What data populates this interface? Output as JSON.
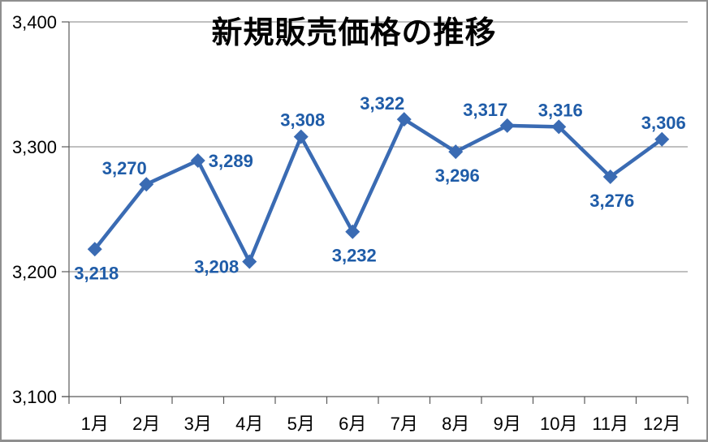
{
  "chart_data": {
    "type": "line",
    "title": "新規販売価格の推移",
    "categories": [
      "1月",
      "2月",
      "3月",
      "4月",
      "5月",
      "6月",
      "7月",
      "8月",
      "9月",
      "10月",
      "11月",
      "12月"
    ],
    "values": [
      3218,
      3270,
      3289,
      3208,
      3308,
      3232,
      3322,
      3296,
      3317,
      3316,
      3276,
      3306
    ],
    "data_labels": [
      "3,218",
      "3,270",
      "3,289",
      "3,208",
      "3,308",
      "3,232",
      "3,322",
      "3,296",
      "3,317",
      "3,316",
      "3,276",
      "3,306"
    ],
    "label_positions": [
      "below",
      "above-left",
      "right",
      "left",
      "above",
      "below",
      "above-left",
      "below",
      "above-left",
      "above",
      "below",
      "above"
    ],
    "xlabel": "",
    "ylabel": "",
    "ylim": [
      3100,
      3400
    ],
    "y_tick_values": [
      3400,
      3300,
      3200,
      3100
    ],
    "y_tick_labels": [
      "3,400",
      "3,300",
      "3,200",
      "3,100"
    ],
    "grid": true,
    "legend": "none",
    "marker": "diamond",
    "colors": {
      "line": "#3a6bb3",
      "marker": "#3a6bb3",
      "data_label": "#1f5ca8",
      "gridline": "#808080",
      "axis": "#595959",
      "title": "#000000",
      "tick_label": "#000000",
      "background": "#ffffff",
      "frame_border": "#8f8f8f"
    }
  }
}
